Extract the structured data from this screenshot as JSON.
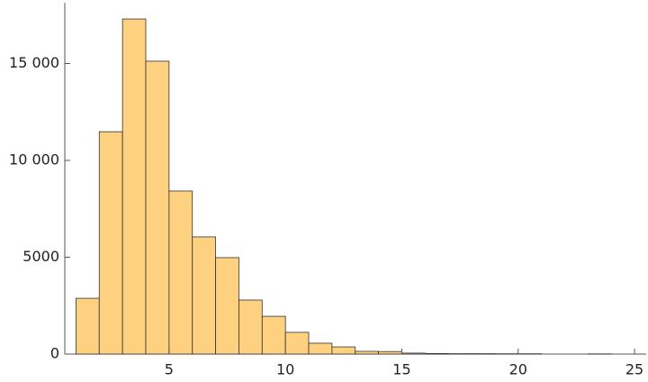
{
  "chart_data": {
    "type": "histogram",
    "bins": [
      1,
      2,
      3,
      4,
      5,
      6,
      7,
      8,
      9,
      10,
      11,
      12,
      13,
      14,
      15,
      16,
      17,
      18,
      19,
      20,
      21,
      22,
      23,
      24
    ],
    "values": [
      2880,
      11480,
      17300,
      15120,
      8420,
      6050,
      4980,
      2790,
      1950,
      1120,
      560,
      370,
      140,
      130,
      50,
      30,
      20,
      20,
      15,
      15,
      0,
      0,
      10
    ],
    "color": "#fdd17f",
    "xlim": [
      0.52,
      25.5
    ],
    "ylim": [
      0,
      18140
    ],
    "xticks": [
      5,
      10,
      15,
      20,
      25
    ],
    "yticks": [
      0,
      5000,
      {
        "value": 10000,
        "label": "10 000"
      },
      {
        "value": 15000,
        "label": "15 000"
      }
    ]
  }
}
